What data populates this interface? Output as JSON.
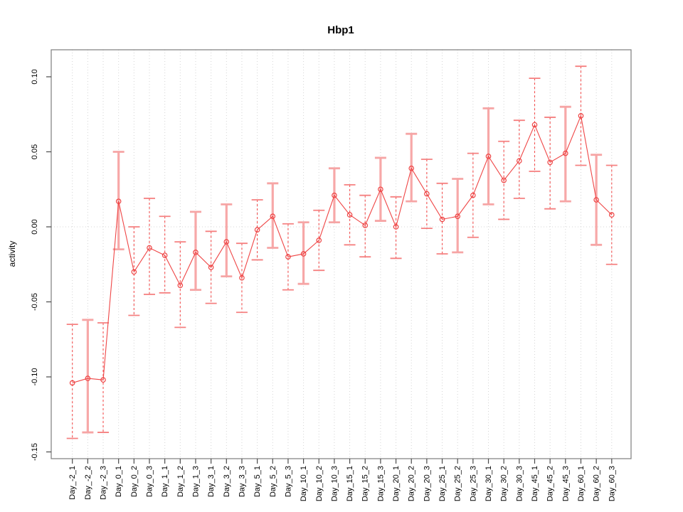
{
  "window": {
    "background": "#ffffff"
  },
  "chart_data": {
    "type": "line",
    "subtype": "points-with-error-bars",
    "title": "Hbp1",
    "xlabel": "",
    "ylabel": "activity",
    "legend": "none",
    "grid": {
      "vertical_dotted_per_category": true,
      "horizontal_dotted_at_zero": true
    },
    "categories": [
      "Day_-2_1",
      "Day_-2_2",
      "Day_-2_3",
      "Day_0_1",
      "Day_0_2",
      "Day_0_3",
      "Day_1_1",
      "Day_1_2",
      "Day_1_3",
      "Day_3_1",
      "Day_3_2",
      "Day_3_3",
      "Day_5_1",
      "Day_5_2",
      "Day_5_3",
      "Day_10_1",
      "Day_10_2",
      "Day_10_3",
      "Day_15_1",
      "Day_15_2",
      "Day_15_3",
      "Day_20_1",
      "Day_20_2",
      "Day_20_3",
      "Day_25_1",
      "Day_25_2",
      "Day_25_3",
      "Day_30_1",
      "Day_30_2",
      "Day_30_3",
      "Day_45_1",
      "Day_45_2",
      "Day_45_3",
      "Day_60_1",
      "Day_60_2",
      "Day_60_3"
    ],
    "series": [
      {
        "name": "activity",
        "values": [
          -0.104,
          -0.101,
          -0.102,
          0.017,
          -0.03,
          -0.014,
          -0.019,
          -0.039,
          -0.017,
          -0.027,
          -0.01,
          -0.034,
          -0.002,
          0.007,
          -0.02,
          -0.018,
          -0.009,
          0.021,
          0.008,
          0.001,
          0.025,
          0.0,
          0.039,
          0.022,
          0.005,
          0.007,
          0.021,
          0.047,
          0.031,
          0.044,
          0.068,
          0.043,
          0.049,
          0.074,
          0.018,
          0.008
        ],
        "upper": [
          -0.065,
          -0.062,
          -0.064,
          0.05,
          0.0,
          0.019,
          0.007,
          -0.01,
          0.01,
          -0.003,
          0.015,
          -0.011,
          0.018,
          0.029,
          0.002,
          0.003,
          0.011,
          0.039,
          0.028,
          0.021,
          0.046,
          0.02,
          0.062,
          0.045,
          0.029,
          0.032,
          0.049,
          0.079,
          0.057,
          0.071,
          0.099,
          0.073,
          0.08,
          0.107,
          0.048,
          0.041
        ],
        "lower": [
          -0.141,
          -0.137,
          -0.137,
          -0.015,
          -0.059,
          -0.045,
          -0.044,
          -0.067,
          -0.042,
          -0.051,
          -0.033,
          -0.057,
          -0.022,
          -0.014,
          -0.042,
          -0.038,
          -0.029,
          0.003,
          -0.012,
          -0.02,
          0.004,
          -0.021,
          0.017,
          -0.001,
          -0.018,
          -0.017,
          -0.007,
          0.015,
          0.005,
          0.019,
          0.037,
          0.012,
          0.017,
          0.041,
          -0.012,
          -0.025
        ],
        "bar_styles": [
          "dashed",
          "thick",
          "dashed",
          "thick",
          "dashed",
          "dashed",
          "dashed",
          "dashed",
          "thick",
          "dashed",
          "thick",
          "dashed",
          "dashed",
          "thick",
          "dashed",
          "thick",
          "dashed",
          "thick",
          "dashed",
          "dashed",
          "thick",
          "dashed",
          "thick",
          "dashed",
          "dashed",
          "thick",
          "dashed",
          "thick",
          "dashed",
          "dashed",
          "dashed",
          "dashed",
          "thick",
          "dashed",
          "thick",
          "dashed"
        ]
      }
    ],
    "yticks": [
      "-0.15",
      "-0.10",
      "-0.05",
      "0.00",
      "0.05",
      "0.10"
    ],
    "ytick_values": [
      -0.15,
      -0.1,
      -0.05,
      0.0,
      0.05,
      0.1
    ],
    "ylim": [
      -0.1545,
      0.118
    ],
    "colors": {
      "point": "#ee4444",
      "line": "#ef4646",
      "error_dashed": "#f25050",
      "error_thick": "#f7a8a8",
      "cap": "#f58080",
      "cap_thick": "#f6a5a5",
      "grid": "#d4d4d4",
      "frame": "#7d7d7d",
      "tick": "#4a4a4a",
      "text": "#000000"
    }
  }
}
